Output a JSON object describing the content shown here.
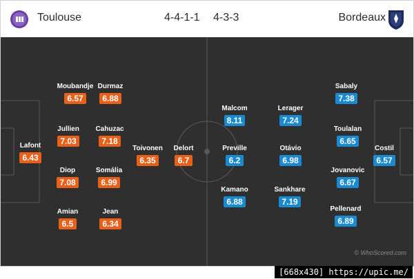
{
  "match": {
    "home": {
      "name": "Toulouse",
      "formation": "4-4-1-1",
      "crest": "toulouse-crest"
    },
    "away": {
      "name": "Bordeaux",
      "formation": "4-3-3",
      "crest": "bordeaux-crest"
    }
  },
  "colors": {
    "pitch": "#2f2f2f",
    "home_rating": "#e8601a",
    "away_rating": "#1a8ad1",
    "lines": "#5a5a5a"
  },
  "home_players": [
    {
      "name": "Lafont",
      "rating": "6.43"
    },
    {
      "name": "Moubandje",
      "rating": "6.57"
    },
    {
      "name": "Durmaz",
      "rating": "6.88"
    },
    {
      "name": "Jullien",
      "rating": "7.03"
    },
    {
      "name": "Cahuzac",
      "rating": "7.18"
    },
    {
      "name": "Diop",
      "rating": "7.08"
    },
    {
      "name": "Somália",
      "rating": "6.99"
    },
    {
      "name": "Amian",
      "rating": "6.5"
    },
    {
      "name": "Jean",
      "rating": "6.34"
    },
    {
      "name": "Toivonen",
      "rating": "6.35"
    },
    {
      "name": "Delort",
      "rating": "6.7"
    }
  ],
  "away_players": [
    {
      "name": "Malcom",
      "rating": "8.11"
    },
    {
      "name": "Lerager",
      "rating": "7.24"
    },
    {
      "name": "Sabaly",
      "rating": "7.38"
    },
    {
      "name": "Toulalan",
      "rating": "6.65"
    },
    {
      "name": "Preville",
      "rating": "6.2"
    },
    {
      "name": "Otávio",
      "rating": "6.98"
    },
    {
      "name": "Costil",
      "rating": "6.57"
    },
    {
      "name": "Jovanovic",
      "rating": "6.67"
    },
    {
      "name": "Kamano",
      "rating": "6.88"
    },
    {
      "name": "Sankhare",
      "rating": "7.19"
    },
    {
      "name": "Pellenard",
      "rating": "6.89"
    }
  ],
  "credit": "© WhoScored.com",
  "footer_tag": "[668x430] https://upic.me/"
}
